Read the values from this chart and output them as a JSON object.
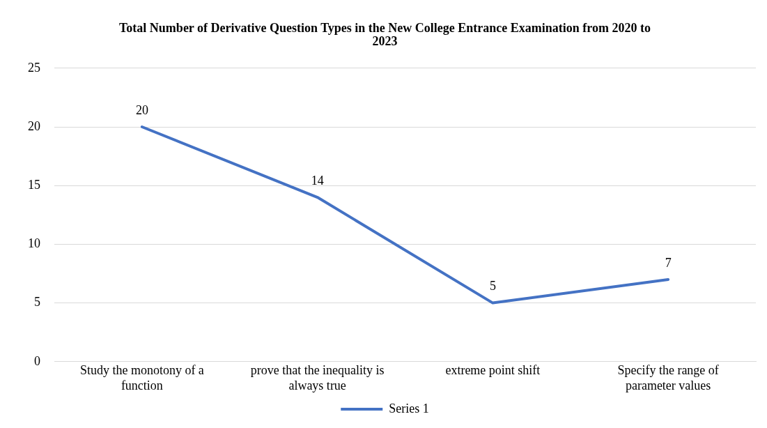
{
  "chart_data": {
    "type": "line",
    "title": "Total Number of Derivative Question Types in the New College Entrance Examination from 2020 to 2023",
    "categories": [
      "Study the monotony of a function",
      "prove that the inequality is always true",
      "extreme point shift",
      "Specify the range of parameter values"
    ],
    "series": [
      {
        "name": "Series 1",
        "color": "#4472c4",
        "values": [
          20,
          14,
          5,
          7
        ]
      }
    ],
    "ylim": [
      0,
      25
    ],
    "yticks": [
      0,
      5,
      10,
      15,
      20,
      25
    ],
    "grid": "y",
    "legend": "bottom",
    "data_labels": true,
    "marker": "none",
    "line_style": "solid"
  }
}
